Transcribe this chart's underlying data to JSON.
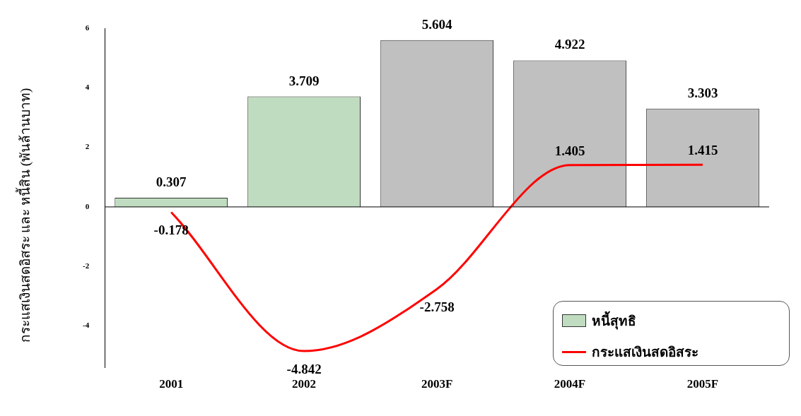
{
  "chart_data": {
    "type": "bar",
    "ylabel": "กระแสเงินสดอิสระ และ หนี้สิน (พันล้านบาท)",
    "categories": [
      "2001",
      "2002",
      "2003F",
      "2004F",
      "2005F"
    ],
    "series": [
      {
        "name": "หนี้สุทธิ",
        "colors": [
          "#c0dcc0",
          "#c0dcc0",
          "#c0c0c0",
          "#c0c0c0",
          "#c0c0c0"
        ],
        "values": [
          0.307,
          3.709,
          5.604,
          4.922,
          3.303
        ]
      },
      {
        "name": "กระแสเงินสดอิสระ",
        "type": "line",
        "color": "#ff0000",
        "values": [
          -0.178,
          -4.842,
          -2.758,
          1.405,
          1.415
        ]
      }
    ],
    "ylim": [
      -5.4,
      6
    ],
    "yticks": [
      -4,
      -2,
      0,
      2,
      4,
      6
    ],
    "data_labels": true,
    "legend": "bottom right",
    "marker": "none",
    "line_style": "solid"
  }
}
